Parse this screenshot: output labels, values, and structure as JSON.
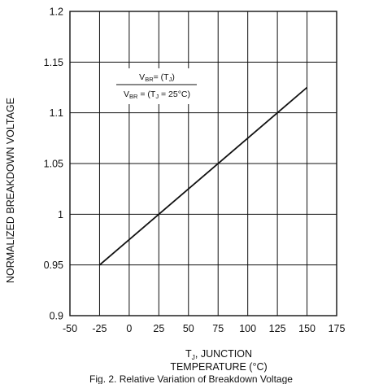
{
  "chart_data": {
    "type": "line",
    "title": "",
    "xlabel_line1": "T_J, JUNCTION",
    "xlabel_line2": "TEMPERATURE (°C)",
    "ylabel": "NORMALIZED BREAKDOWN VOLTAGE",
    "caption": "Fig. 2. Relative Variation of Breakdown Voltage",
    "xlim": [
      -50,
      175
    ],
    "ylim": [
      0.9,
      1.2
    ],
    "x_ticks": [
      -50,
      -25,
      0,
      25,
      50,
      75,
      100,
      125,
      150,
      175
    ],
    "y_ticks": [
      0.9,
      0.95,
      1,
      1.05,
      1.1,
      1.15,
      1.2
    ],
    "x_tick_labels": [
      "-50",
      "-25",
      "0",
      "25",
      "50",
      "75",
      "100",
      "125",
      "150",
      "175"
    ],
    "y_tick_labels": [
      "0.9",
      "0.95",
      "1",
      "1.05",
      "1.1",
      "1.15",
      "1.2"
    ],
    "grid": true,
    "series": [
      {
        "x": [
          -25,
          150
        ],
        "y": [
          0.95,
          1.125
        ],
        "color": "#111111"
      }
    ],
    "legend": {
      "placement": "top-left",
      "numerator": "V_BR= (T_J)",
      "denominator": "V_BR = (T_J = 25°C)"
    }
  }
}
